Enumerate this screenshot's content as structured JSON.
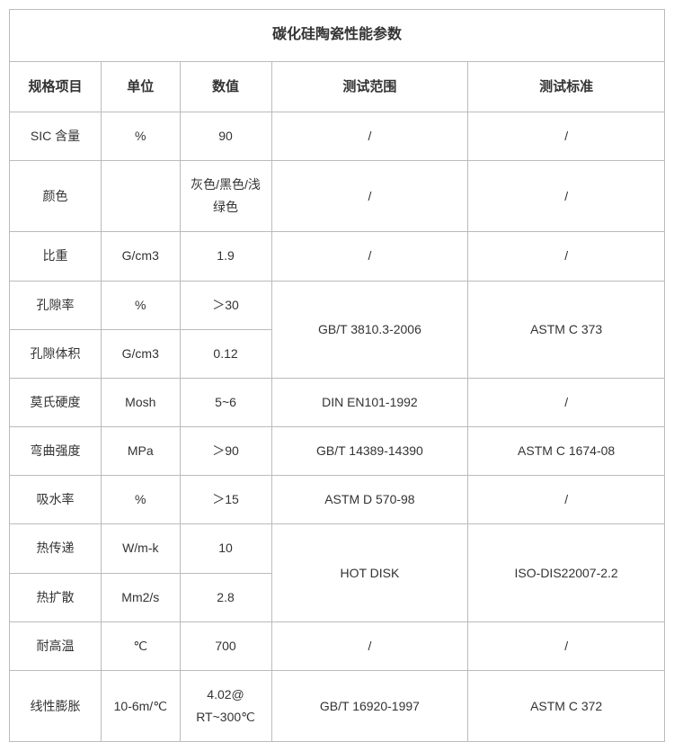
{
  "title": "碳化硅陶瓷性能参数",
  "headers": [
    "规格项目",
    "单位",
    "数值",
    "测试范围",
    "测试标准"
  ],
  "rows": {
    "r0": {
      "spec": "SIC 含量",
      "unit": "%",
      "value": "90",
      "range": "/",
      "std": "/"
    },
    "r1": {
      "spec": "颜色",
      "unit": "",
      "value": "灰色/黑色/浅绿色",
      "range": "/",
      "std": "/"
    },
    "r2": {
      "spec": "比重",
      "unit": "G/cm3",
      "value": "1.9",
      "range": "/",
      "std": "/"
    },
    "r3": {
      "spec": "孔隙率",
      "unit": "%",
      "value": "＞30"
    },
    "r4": {
      "spec": "孔隙体积",
      "unit": "G/cm3",
      "value": "0.12"
    },
    "merge34": {
      "range": "GB/T 3810.3-2006",
      "std": "ASTM C 373"
    },
    "r5": {
      "spec": "莫氏硬度",
      "unit": "Mosh",
      "value": "5~6",
      "range": "DIN EN101-1992",
      "std": "/"
    },
    "r6": {
      "spec": "弯曲强度",
      "unit": "MPa",
      "value": "＞90",
      "range": "GB/T 14389-14390",
      "std": "ASTM C 1674-08"
    },
    "r7": {
      "spec": "吸水率",
      "unit": "%",
      "value": "＞15",
      "range": "ASTM D 570-98",
      "std": "/"
    },
    "r8": {
      "spec": "热传递",
      "unit": "W/m-k",
      "value": "10"
    },
    "r9": {
      "spec": "热扩散",
      "unit": "Mm2/s",
      "value": "2.8"
    },
    "merge89": {
      "range": "HOT DISK",
      "std": "ISO-DIS22007-2.2"
    },
    "r10": {
      "spec": "耐高温",
      "unit": "℃",
      "value": "700",
      "range": "/",
      "std": "/"
    },
    "r11": {
      "spec": "线性膨胀",
      "unit": "10-6m/℃",
      "value": "4.02@ RT~300℃",
      "range": "GB/T 16920-1997",
      "std": "ASTM C 372"
    }
  },
  "styling": {
    "border_color": "#bbbbbb",
    "background_color": "#ffffff",
    "text_color": "#333333",
    "title_fontsize": 16,
    "header_fontsize": 15,
    "cell_fontsize": 14,
    "font_family": "Microsoft YaHei, PingFang SC, Arial, sans-serif",
    "column_widths_pct": [
      14,
      12,
      14,
      30,
      30
    ]
  }
}
